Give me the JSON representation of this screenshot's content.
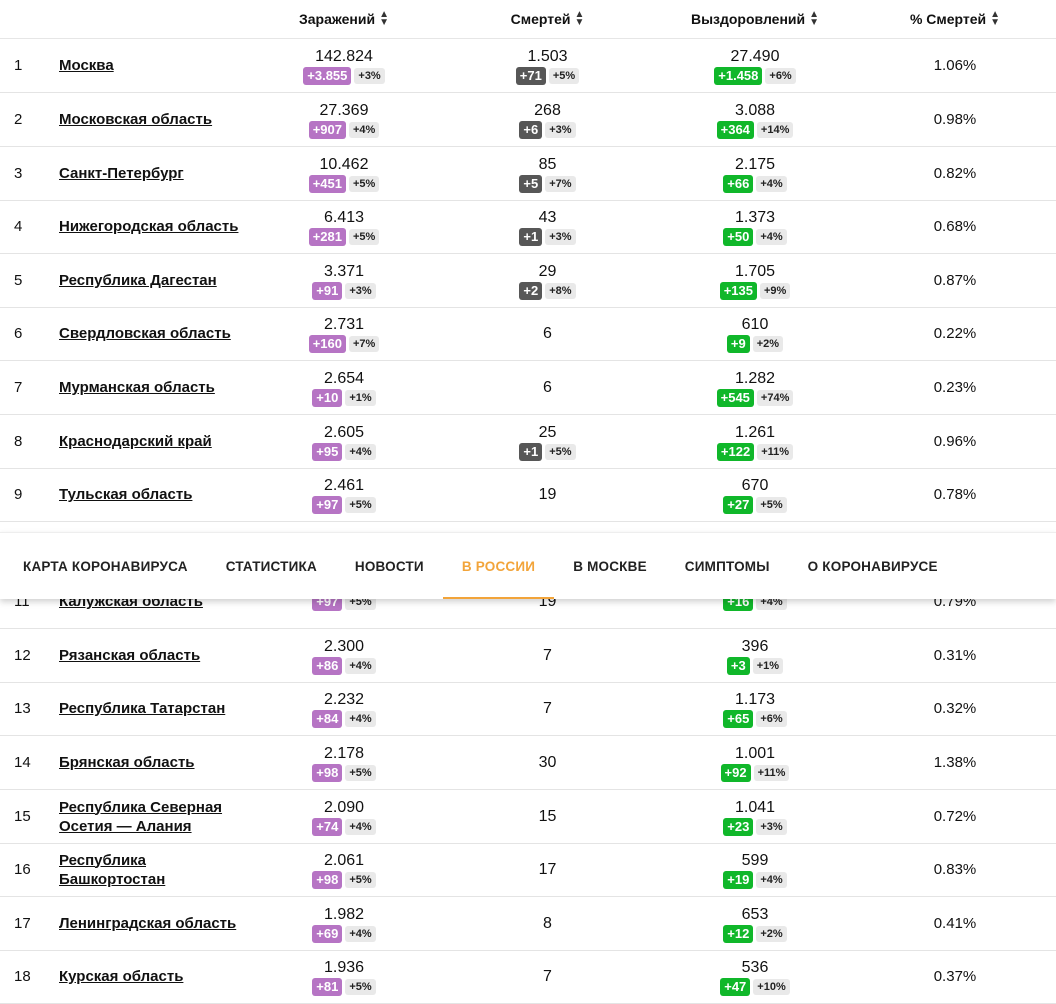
{
  "columns": {
    "infections": "Заражений",
    "deaths": "Смертей",
    "recovered": "Выздоровлений",
    "death_rate": "% Смертей"
  },
  "rows": [
    {
      "rank": "1",
      "region": "Москва",
      "inf": {
        "total": "142.824",
        "delta": "+3.855",
        "pct": "+3%"
      },
      "dth": {
        "total": "1.503",
        "delta": "+71",
        "pct": "+5%"
      },
      "rec": {
        "total": "27.490",
        "delta": "+1.458",
        "pct": "+6%"
      },
      "rate": "1.06%"
    },
    {
      "rank": "2",
      "region": "Московская область",
      "inf": {
        "total": "27.369",
        "delta": "+907",
        "pct": "+4%"
      },
      "dth": {
        "total": "268",
        "delta": "+6",
        "pct": "+3%"
      },
      "rec": {
        "total": "3.088",
        "delta": "+364",
        "pct": "+14%"
      },
      "rate": "0.98%"
    },
    {
      "rank": "3",
      "region": "Санкт-Петербург",
      "inf": {
        "total": "10.462",
        "delta": "+451",
        "pct": "+5%"
      },
      "dth": {
        "total": "85",
        "delta": "+5",
        "pct": "+7%"
      },
      "rec": {
        "total": "2.175",
        "delta": "+66",
        "pct": "+4%"
      },
      "rate": "0.82%"
    },
    {
      "rank": "4",
      "region": "Нижегородская область",
      "inf": {
        "total": "6.413",
        "delta": "+281",
        "pct": "+5%"
      },
      "dth": {
        "total": "43",
        "delta": "+1",
        "pct": "+3%"
      },
      "rec": {
        "total": "1.373",
        "delta": "+50",
        "pct": "+4%"
      },
      "rate": "0.68%"
    },
    {
      "rank": "5",
      "region": "Республика Дагестан",
      "inf": {
        "total": "3.371",
        "delta": "+91",
        "pct": "+3%"
      },
      "dth": {
        "total": "29",
        "delta": "+2",
        "pct": "+8%"
      },
      "rec": {
        "total": "1.705",
        "delta": "+135",
        "pct": "+9%"
      },
      "rate": "0.87%"
    },
    {
      "rank": "6",
      "region": "Свердловская область",
      "inf": {
        "total": "2.731",
        "delta": "+160",
        "pct": "+7%"
      },
      "dth": {
        "total": "6"
      },
      "rec": {
        "total": "610",
        "delta": "+9",
        "pct": "+2%"
      },
      "rate": "0.22%"
    },
    {
      "rank": "7",
      "region": "Мурманская область",
      "inf": {
        "total": "2.654",
        "delta": "+10",
        "pct": "+1%"
      },
      "dth": {
        "total": "6"
      },
      "rec": {
        "total": "1.282",
        "delta": "+545",
        "pct": "+74%"
      },
      "rate": "0.23%"
    },
    {
      "rank": "8",
      "region": "Краснодарский край",
      "inf": {
        "total": "2.605",
        "delta": "+95",
        "pct": "+4%"
      },
      "dth": {
        "total": "25",
        "delta": "+1",
        "pct": "+5%"
      },
      "rec": {
        "total": "1.261",
        "delta": "+122",
        "pct": "+11%"
      },
      "rate": "0.96%"
    },
    {
      "rank": "9",
      "region": "Тульская область",
      "inf": {
        "total": "2.461",
        "delta": "+97",
        "pct": "+5%"
      },
      "dth": {
        "total": "19"
      },
      "rec": {
        "total": "670",
        "delta": "+27",
        "pct": "+5%"
      },
      "rate": "0.78%"
    },
    {
      "rank": "11",
      "region": "Калужская область",
      "inf": {
        "total": "",
        "delta": "+97",
        "pct": "+5%"
      },
      "dth": {
        "total": "19"
      },
      "rec": {
        "total": "",
        "delta": "+16",
        "pct": "+4%"
      },
      "rate": "0.79%"
    },
    {
      "rank": "12",
      "region": "Рязанская область",
      "inf": {
        "total": "2.300",
        "delta": "+86",
        "pct": "+4%"
      },
      "dth": {
        "total": "7"
      },
      "rec": {
        "total": "396",
        "delta": "+3",
        "pct": "+1%"
      },
      "rate": "0.31%"
    },
    {
      "rank": "13",
      "region": "Республика Татарстан",
      "inf": {
        "total": "2.232",
        "delta": "+84",
        "pct": "+4%"
      },
      "dth": {
        "total": "7"
      },
      "rec": {
        "total": "1.173",
        "delta": "+65",
        "pct": "+6%"
      },
      "rate": "0.32%"
    },
    {
      "rank": "14",
      "region": "Брянская область",
      "inf": {
        "total": "2.178",
        "delta": "+98",
        "pct": "+5%"
      },
      "dth": {
        "total": "30"
      },
      "rec": {
        "total": "1.001",
        "delta": "+92",
        "pct": "+11%"
      },
      "rate": "1.38%"
    },
    {
      "rank": "15",
      "region": "Республика Северная Осетия — Алания",
      "inf": {
        "total": "2.090",
        "delta": "+74",
        "pct": "+4%"
      },
      "dth": {
        "total": "15"
      },
      "rec": {
        "total": "1.041",
        "delta": "+23",
        "pct": "+3%"
      },
      "rate": "0.72%"
    },
    {
      "rank": "16",
      "region": "Республика Башкортостан",
      "inf": {
        "total": "2.061",
        "delta": "+98",
        "pct": "+5%"
      },
      "dth": {
        "total": "17"
      },
      "rec": {
        "total": "599",
        "delta": "+19",
        "pct": "+4%"
      },
      "rate": "0.83%"
    },
    {
      "rank": "17",
      "region": "Ленинградская область",
      "inf": {
        "total": "1.982",
        "delta": "+69",
        "pct": "+4%"
      },
      "dth": {
        "total": "8"
      },
      "rec": {
        "total": "653",
        "delta": "+12",
        "pct": "+2%"
      },
      "rate": "0.41%"
    },
    {
      "rank": "18",
      "region": "Курская область",
      "inf": {
        "total": "1.936",
        "delta": "+81",
        "pct": "+5%"
      },
      "dth": {
        "total": "7"
      },
      "rec": {
        "total": "536",
        "delta": "+47",
        "pct": "+10%"
      },
      "rate": "0.37%"
    }
  ],
  "nav": [
    {
      "label": "КАРТА КОРОНАВИРУСА",
      "active": false
    },
    {
      "label": "СТАТИСТИКА",
      "active": false
    },
    {
      "label": "НОВОСТИ",
      "active": false
    },
    {
      "label": "В РОССИИ",
      "active": true
    },
    {
      "label": "В МОСКВЕ",
      "active": false
    },
    {
      "label": "СИМПТОМЫ",
      "active": false
    },
    {
      "label": "О КОРОНАВИРУСЕ",
      "active": false
    }
  ]
}
